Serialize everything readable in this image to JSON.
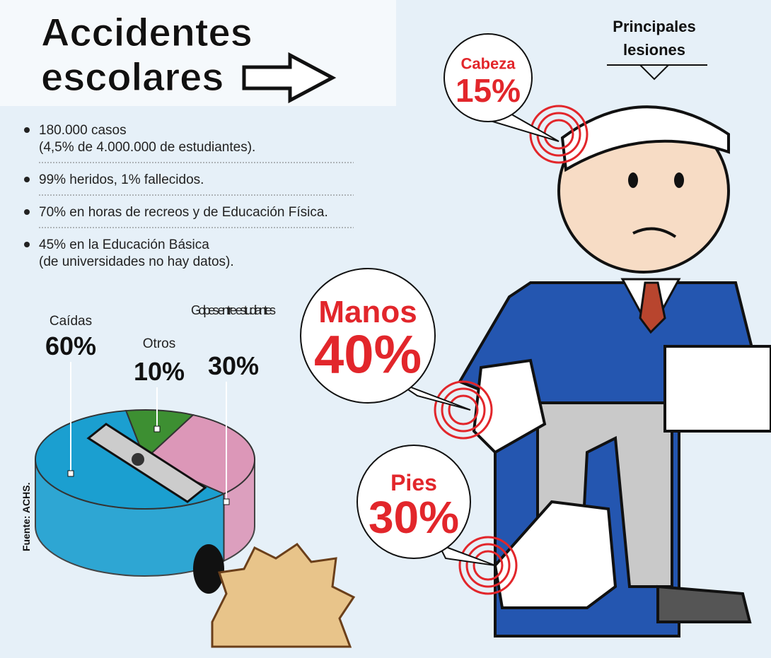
{
  "title": [
    "Accidentes",
    "escolares"
  ],
  "bullets": [
    [
      "180.000 casos",
      "(4,5% de 4.000.000 de estudiantes)."
    ],
    [
      "99% heridos, 1% fallecidos."
    ],
    [
      "70% en horas de recreos y de Educación Física."
    ],
    [
      "45% en la Educación Básica",
      "(de universidades no hay datos)."
    ]
  ],
  "source": "Fuente: ACHS.",
  "injuries_title": [
    "Principales",
    "lesiones"
  ],
  "injuries": [
    {
      "label": "Cabeza",
      "value": "15%"
    },
    {
      "label": "Manos",
      "value": "40%"
    },
    {
      "label": "Pies",
      "value": "30%"
    }
  ],
  "chart_data": {
    "type": "pie",
    "categories": [
      "Caídas",
      "Otros",
      "Golpes entre estudiantes"
    ],
    "values": [
      60,
      10,
      30
    ],
    "value_labels": [
      "60%",
      "10%",
      "30%"
    ],
    "colors": [
      "#1b9fd0",
      "#3d8f32",
      "#dc97b8"
    ]
  }
}
